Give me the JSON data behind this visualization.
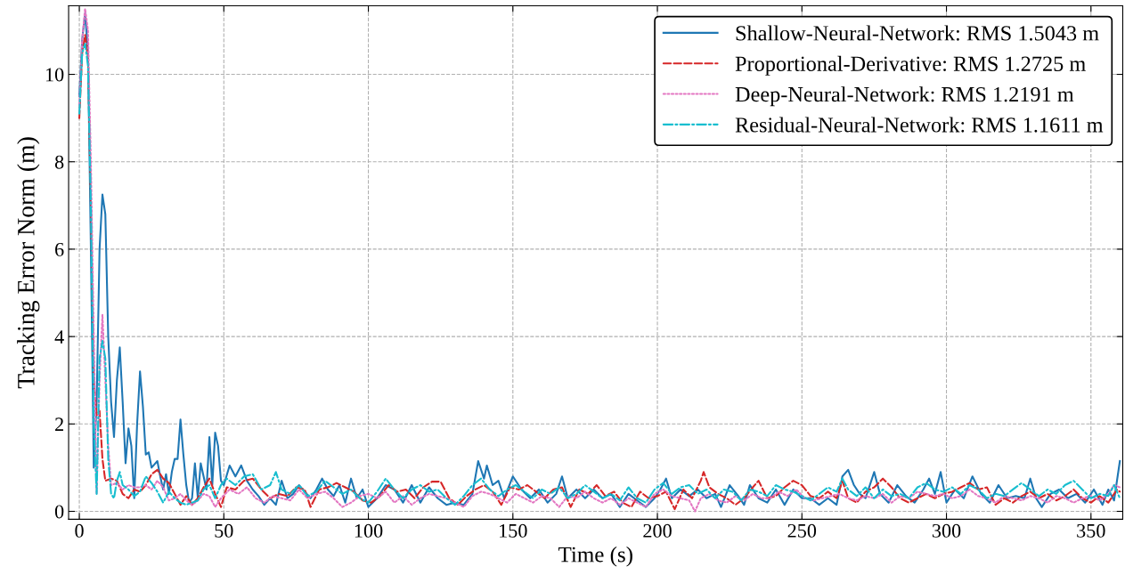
{
  "chart_data": {
    "type": "line",
    "xlabel": "Time (s)",
    "ylabel": "Tracking Error Norm (m)",
    "xlim": [
      -3.7,
      361
    ],
    "ylim": [
      -0.18,
      11.57
    ],
    "xticks": [
      0,
      50,
      100,
      150,
      200,
      250,
      300,
      350
    ],
    "yticks": [
      0,
      2,
      4,
      6,
      8,
      10
    ],
    "grid": true,
    "legend": "top right",
    "marker": "none",
    "series": [
      {
        "name": "Shallow-Neural-Network: RMS 1.5043 m",
        "color": "#1f77b4",
        "line_style": "solid",
        "x": [
          0,
          1,
          2,
          3,
          4,
          5,
          6,
          7,
          8,
          9,
          10,
          11,
          12,
          13,
          14,
          15,
          16,
          17,
          18,
          19,
          20,
          21,
          22,
          23,
          24,
          25,
          27,
          28,
          29,
          30,
          31,
          32,
          33,
          34,
          35,
          36,
          37,
          38,
          39,
          40,
          41,
          42,
          43,
          44,
          45,
          46,
          47,
          48,
          49,
          50,
          52,
          54,
          56,
          58,
          60,
          62,
          64,
          66,
          68,
          70,
          72,
          74,
          76,
          78,
          80,
          82,
          84,
          86,
          88,
          90,
          92,
          94,
          96,
          98,
          100,
          103,
          106,
          109,
          112,
          115,
          118,
          121,
          124,
          127,
          130,
          133,
          136,
          138,
          140,
          141,
          143,
          145,
          147,
          150,
          153,
          156,
          159,
          162,
          165,
          167,
          169,
          172,
          175,
          178,
          181,
          184,
          187,
          190,
          193,
          196,
          199,
          201,
          203,
          205,
          208,
          211,
          214,
          217,
          220,
          222,
          225,
          228,
          230,
          232,
          235,
          238,
          241,
          244,
          247,
          250,
          253,
          256,
          259,
          262,
          264,
          266,
          268,
          270,
          272,
          275,
          277,
          280,
          283,
          286,
          289,
          292,
          294,
          296,
          298,
          300,
          303,
          306,
          309,
          312,
          315,
          318,
          321,
          324,
          327,
          329,
          331,
          333,
          336,
          339,
          342,
          345,
          348,
          351,
          354,
          356,
          358,
          360
        ],
        "values": [
          9.5,
          10.8,
          11.4,
          10.5,
          6,
          1.0,
          2.5,
          6,
          7.25,
          6.8,
          4,
          2.5,
          1.7,
          3,
          3.75,
          2.5,
          1.1,
          1.9,
          1.5,
          0.3,
          2,
          3.2,
          2.4,
          1.3,
          1.35,
          1.0,
          1.15,
          0.8,
          0.5,
          0.85,
          0.4,
          0.9,
          1.2,
          1.2,
          2.1,
          1.3,
          0.6,
          0.2,
          0.3,
          1.1,
          0.3,
          1.1,
          0.8,
          0.5,
          1.7,
          0.6,
          1.8,
          1.5,
          0.7,
          0.6,
          1.05,
          0.8,
          1.05,
          0.7,
          0.5,
          0.35,
          0.15,
          0.3,
          0.15,
          0.7,
          0.3,
          0.4,
          0.6,
          0.45,
          0.3,
          0.5,
          0.75,
          0.5,
          0.35,
          0.6,
          0.2,
          0.75,
          0.3,
          0.5,
          0.1,
          0.3,
          0.6,
          0.5,
          0.2,
          0.6,
          0.2,
          0.55,
          0.3,
          0.15,
          0.2,
          0.15,
          0.4,
          1.15,
          0.75,
          1.05,
          0.6,
          0.7,
          0.3,
          0.8,
          0.5,
          0.3,
          0.5,
          0.2,
          0.4,
          0.8,
          0.3,
          0.5,
          0.3,
          0.5,
          0.3,
          0.4,
          0.1,
          0.4,
          0.25,
          0.1,
          0.3,
          0.5,
          0.75,
          0.3,
          0.5,
          0.35,
          0.5,
          0.3,
          0.4,
          0.1,
          0.6,
          0.35,
          0.15,
          0.6,
          0.3,
          0.2,
          0.5,
          0.15,
          0.5,
          0.3,
          0.3,
          0.15,
          0.3,
          0.15,
          0.8,
          0.95,
          0.6,
          0.4,
          0.3,
          0.9,
          0.4,
          0.2,
          0.6,
          0.35,
          0.2,
          0.5,
          0.75,
          0.4,
          0.9,
          0.2,
          0.5,
          0.3,
          0.8,
          0.4,
          0.2,
          0.6,
          0.3,
          0.35,
          0.3,
          0.75,
          0.3,
          0.1,
          0.4,
          0.5,
          0.3,
          0.4,
          0.2,
          0.5,
          0.15,
          0.5,
          0.25,
          1.15
        ]
      },
      {
        "name": "Proportional-Derivative: RMS 1.2725 m",
        "color": "#d62728",
        "line_style": "dashed",
        "x": [
          0,
          1,
          2,
          3,
          4,
          5,
          6,
          7,
          8,
          9,
          11,
          13,
          15,
          17,
          19,
          21,
          23,
          25,
          27,
          29,
          31,
          33,
          35,
          37,
          39,
          41,
          43,
          45,
          47,
          49,
          51,
          54,
          57,
          60,
          63,
          66,
          69,
          72,
          75,
          78,
          80,
          83,
          86,
          89,
          92,
          95,
          98,
          101,
          104,
          107,
          110,
          113,
          116,
          119,
          122,
          125,
          128,
          131,
          134,
          137,
          140,
          143,
          146,
          149,
          152,
          155,
          158,
          161,
          164,
          167,
          170,
          173,
          176,
          179,
          182,
          185,
          188,
          191,
          194,
          197,
          200,
          203,
          206,
          209,
          212,
          215,
          216,
          218,
          221,
          224,
          227,
          230,
          233,
          235,
          238,
          241,
          244,
          247,
          250,
          253,
          256,
          259,
          262,
          264,
          266,
          269,
          272,
          275,
          278,
          281,
          284,
          287,
          290,
          293,
          296,
          299,
          302,
          305,
          308,
          311,
          314,
          317,
          320,
          323,
          326,
          329,
          332,
          335,
          338,
          341,
          344,
          347,
          350,
          353,
          356,
          359,
          360
        ],
        "values": [
          9.0,
          10.5,
          10.9,
          10.4,
          7,
          3,
          2.2,
          2.3,
          1.2,
          0.7,
          0.75,
          0.7,
          0.4,
          0.3,
          0.5,
          0.45,
          0.6,
          0.85,
          0.95,
          0.75,
          0.65,
          0.4,
          0.15,
          0.35,
          0.15,
          0.3,
          0.55,
          0.75,
          0.4,
          0.1,
          0.55,
          0.5,
          0.7,
          0.75,
          0.5,
          0.3,
          0.4,
          0.35,
          0.55,
          0.5,
          0.1,
          0.5,
          0.55,
          0.65,
          0.55,
          0.45,
          0.25,
          0.2,
          0.35,
          0.6,
          0.45,
          0.5,
          0.3,
          0.55,
          0.68,
          0.68,
          0.3,
          0.15,
          0.35,
          0.5,
          0.6,
          0.45,
          0.15,
          0.55,
          0.5,
          0.6,
          0.45,
          0.3,
          0.5,
          0.55,
          0.1,
          0.5,
          0.4,
          0.6,
          0.35,
          0.45,
          0.2,
          0.1,
          0.45,
          0.3,
          0.35,
          0.45,
          0.05,
          0.5,
          0.3,
          0.7,
          0.9,
          0.55,
          0.4,
          0.3,
          0.15,
          0.3,
          0.55,
          0.7,
          0.3,
          0.35,
          0.55,
          0.7,
          0.6,
          0.35,
          0.3,
          0.45,
          0.3,
          0.7,
          0.3,
          0.2,
          0.45,
          0.55,
          0.75,
          0.55,
          0.3,
          0.2,
          0.3,
          0.4,
          0.3,
          0.4,
          0.45,
          0.55,
          0.65,
          0.5,
          0.55,
          0.15,
          0.3,
          0.2,
          0.35,
          0.45,
          0.3,
          0.4,
          0.25,
          0.35,
          0.5,
          0.3,
          0.2,
          0.35,
          0.2,
          0.5,
          0.45
        ]
      },
      {
        "name": "Deep-Neural-Network: RMS 1.2191 m",
        "color": "#e377c2",
        "line_style": "dotted",
        "x": [
          0,
          1,
          2,
          3,
          4,
          5,
          6,
          7,
          8,
          9,
          10,
          11,
          13,
          15,
          17,
          19,
          21,
          23,
          25,
          27,
          29,
          31,
          33,
          35,
          37,
          39,
          41,
          43,
          45,
          47,
          49,
          52,
          55,
          58,
          61,
          64,
          67,
          70,
          73,
          76,
          79,
          82,
          85,
          88,
          91,
          94,
          97,
          100,
          103,
          106,
          109,
          112,
          115,
          118,
          121,
          124,
          127,
          130,
          133,
          136,
          139,
          142,
          145,
          148,
          151,
          154,
          157,
          160,
          163,
          166,
          169,
          172,
          175,
          178,
          181,
          184,
          187,
          190,
          193,
          196,
          199,
          202,
          205,
          208,
          211,
          213,
          215,
          218,
          221,
          224,
          227,
          230,
          233,
          236,
          239,
          242,
          245,
          248,
          251,
          254,
          257,
          260,
          263,
          266,
          269,
          272,
          275,
          278,
          281,
          284,
          287,
          290,
          293,
          296,
          299,
          302,
          305,
          308,
          311,
          314,
          317,
          320,
          323,
          326,
          329,
          332,
          335,
          338,
          341,
          344,
          347,
          350,
          353,
          356,
          358,
          360
        ],
        "values": [
          9.3,
          10.8,
          11.5,
          11,
          8,
          4,
          0.4,
          3,
          4.5,
          3,
          1.5,
          0.6,
          0.65,
          0.5,
          0.6,
          0.55,
          0.55,
          0.6,
          0.5,
          0.7,
          0.55,
          0.25,
          0.3,
          0.4,
          0.25,
          0.15,
          0.25,
          0.4,
          0.35,
          0.1,
          0.3,
          0.5,
          0.4,
          0.55,
          0.3,
          0.2,
          0.35,
          0.3,
          0.25,
          0.5,
          0.3,
          0.4,
          0.45,
          0.3,
          0.1,
          0.2,
          0.35,
          0.4,
          0.3,
          0.45,
          0.2,
          0.35,
          0.15,
          0.3,
          0.4,
          0.35,
          0.3,
          0.2,
          0.1,
          0.35,
          0.45,
          0.4,
          0.3,
          0.2,
          0.4,
          0.3,
          0.2,
          0.35,
          0.3,
          0.1,
          0.35,
          0.3,
          0.45,
          0.3,
          0.2,
          0.3,
          0.15,
          0.3,
          0.2,
          0.1,
          0.4,
          0.5,
          0.35,
          0.3,
          0.25,
          0.0,
          0.3,
          0.4,
          0.25,
          0.2,
          0.35,
          0.25,
          0.4,
          0.3,
          0.3,
          0.45,
          0.35,
          0.5,
          0.3,
          0.25,
          0.3,
          0.35,
          0.4,
          0.3,
          0.25,
          0.35,
          0.3,
          0.4,
          0.2,
          0.35,
          0.3,
          0.45,
          0.4,
          0.35,
          0.4,
          0.3,
          0.35,
          0.5,
          0.35,
          0.3,
          0.2,
          0.35,
          0.3,
          0.25,
          0.35,
          0.3,
          0.2,
          0.35,
          0.3,
          0.2,
          0.3,
          0.35,
          0.25,
          0.4,
          0.6,
          0.55
        ]
      },
      {
        "name": "Residual-Neural-Network: RMS 1.1611 m",
        "color": "#17becf",
        "line_style": "dashdot",
        "x": [
          0,
          1,
          2,
          3,
          4,
          5,
          6,
          7,
          8,
          9,
          10,
          11,
          12,
          13,
          14,
          15,
          17,
          19,
          21,
          23,
          25,
          27,
          29,
          31,
          33,
          35,
          37,
          39,
          41,
          43,
          45,
          47,
          49,
          51,
          54,
          57,
          60,
          63,
          66,
          68,
          70,
          73,
          76,
          79,
          82,
          85,
          88,
          91,
          94,
          97,
          100,
          103,
          106,
          109,
          112,
          115,
          118,
          121,
          124,
          127,
          130,
          133,
          136,
          139,
          142,
          145,
          148,
          151,
          154,
          157,
          160,
          163,
          166,
          169,
          172,
          175,
          178,
          181,
          184,
          187,
          190,
          193,
          196,
          199,
          202,
          205,
          208,
          211,
          214,
          217,
          220,
          223,
          226,
          229,
          232,
          235,
          238,
          241,
          244,
          247,
          250,
          253,
          256,
          259,
          262,
          264,
          266,
          269,
          272,
          275,
          278,
          281,
          284,
          287,
          290,
          293,
          296,
          299,
          302,
          305,
          308,
          311,
          314,
          317,
          320,
          323,
          326,
          329,
          332,
          335,
          338,
          341,
          344,
          347,
          350,
          353,
          356,
          358,
          360
        ],
        "values": [
          9.1,
          10.5,
          10.7,
          10.2,
          7,
          2,
          0.4,
          3.5,
          3.9,
          3.5,
          1.2,
          0.4,
          0.3,
          0.7,
          0.9,
          0.6,
          0.5,
          0.35,
          0.45,
          0.8,
          0.65,
          0.45,
          0.2,
          0.45,
          0.3,
          0.2,
          0.15,
          0.2,
          0.25,
          0.5,
          0.6,
          0.3,
          0.6,
          0.75,
          0.6,
          0.8,
          0.85,
          0.5,
          0.6,
          0.9,
          0.5,
          0.4,
          0.6,
          0.35,
          0.45,
          0.7,
          0.55,
          0.4,
          0.5,
          0.3,
          0.2,
          0.45,
          0.75,
          0.5,
          0.3,
          0.5,
          0.6,
          0.45,
          0.5,
          0.3,
          0.15,
          0.35,
          0.6,
          0.75,
          0.5,
          0.35,
          0.5,
          0.6,
          0.45,
          0.3,
          0.5,
          0.4,
          0.55,
          0.3,
          0.4,
          0.6,
          0.45,
          0.3,
          0.4,
          0.25,
          0.55,
          0.3,
          0.2,
          0.5,
          0.65,
          0.4,
          0.55,
          0.6,
          0.4,
          0.5,
          0.3,
          0.5,
          0.45,
          0.25,
          0.5,
          0.45,
          0.35,
          0.6,
          0.5,
          0.45,
          0.35,
          0.25,
          0.4,
          0.55,
          0.45,
          0.75,
          0.5,
          0.35,
          0.55,
          0.3,
          0.5,
          0.35,
          0.4,
          0.3,
          0.55,
          0.65,
          0.5,
          0.45,
          0.55,
          0.4,
          0.6,
          0.5,
          0.3,
          0.4,
          0.35,
          0.5,
          0.65,
          0.5,
          0.35,
          0.5,
          0.4,
          0.6,
          0.7,
          0.5,
          0.3,
          0.4,
          0.35,
          0.6,
          0.3
        ]
      }
    ]
  }
}
